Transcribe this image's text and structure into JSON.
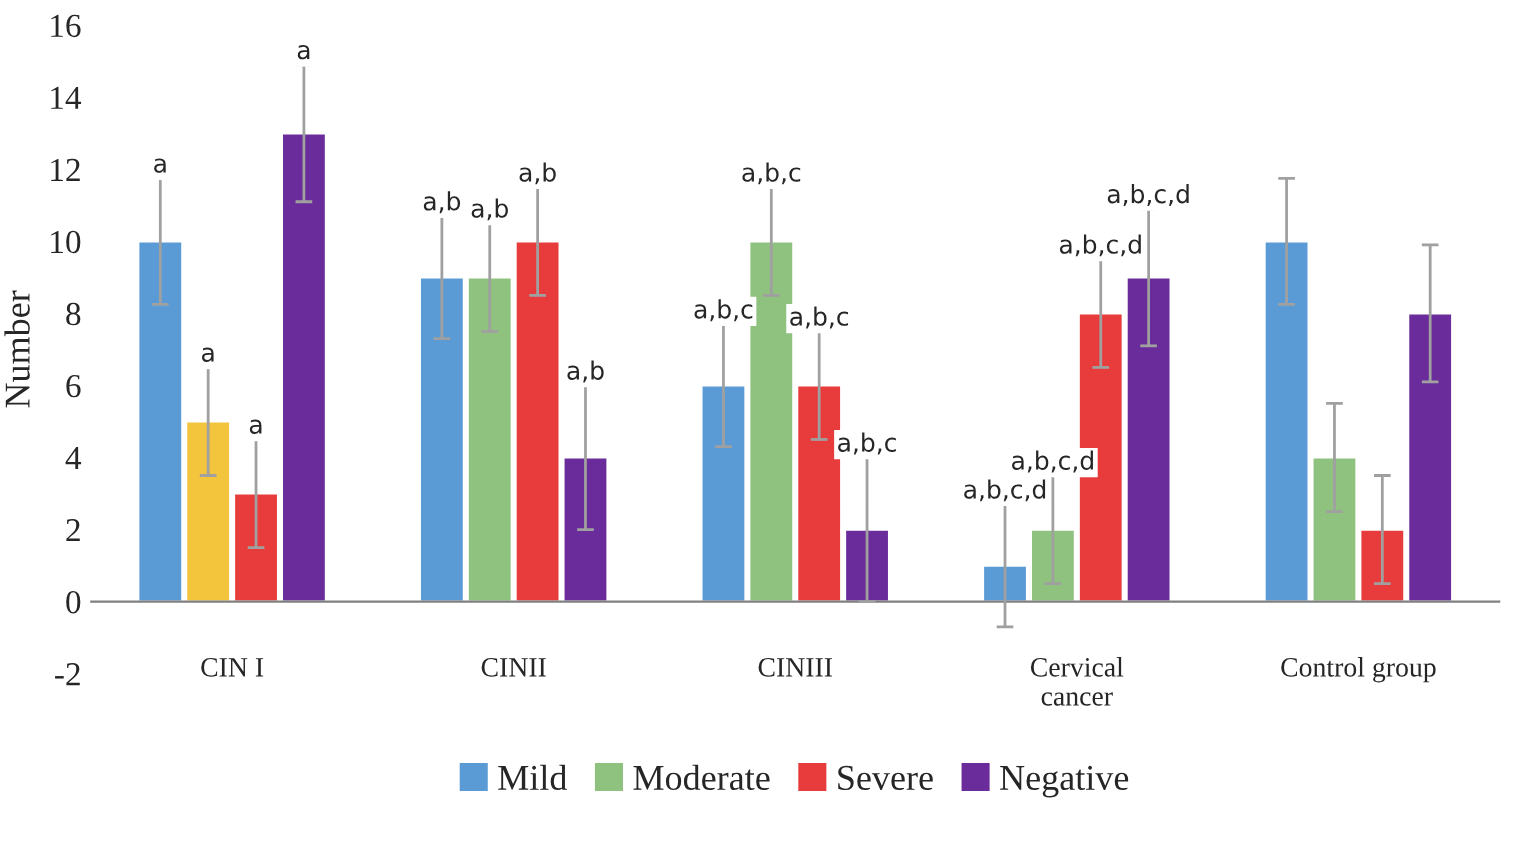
{
  "chart_data": {
    "type": "bar",
    "ylabel": "Number",
    "categories": [
      "CIN I",
      "CINII",
      "CINIII",
      "Cervical\ncancer",
      "Control group"
    ],
    "series": [
      {
        "name": "Mild",
        "color": "#5b9bd5",
        "values": [
          10,
          9,
          6,
          1,
          10
        ],
        "errors": [
          1.75,
          1.7,
          1.7,
          1.7,
          1.75
        ],
        "value_labels": [
          "a",
          "a,b",
          "a,b,c",
          "a,b,c,d",
          null
        ]
      },
      {
        "name": "Moderate",
        "color": "#8fc17f",
        "colors": [
          "#f2c53d",
          "#8fc17f",
          "#8fc17f",
          "#8fc17f",
          "#8fc17f"
        ],
        "values": [
          5,
          9,
          10,
          2,
          4
        ],
        "errors": [
          1.5,
          1.5,
          1.5,
          1.5,
          1.5
        ],
        "value_labels": [
          "a",
          "a,b",
          "a,b,c",
          "a,b,c,d",
          null
        ]
      },
      {
        "name": "Severe",
        "color": "#e83c3c",
        "values": [
          3,
          10,
          6,
          8,
          2
        ],
        "errors": [
          1.5,
          1.5,
          1.5,
          1.5,
          1.5
        ],
        "value_labels": [
          "a",
          "a,b",
          "a,b,c",
          "a,b,c,d",
          null
        ]
      },
      {
        "name": "Negative",
        "color": "#6a2c9a",
        "values": [
          13,
          4,
          2,
          9,
          8
        ],
        "errors": [
          1.9,
          2,
          2,
          1.9,
          1.9
        ],
        "value_labels": [
          "a",
          "a,b",
          "a,b,c",
          "a,b,c,d",
          null
        ]
      }
    ],
    "ylim": [
      -2,
      16
    ],
    "yticks": [
      -2,
      0,
      2,
      4,
      6,
      8,
      10,
      12,
      14,
      16
    ],
    "grid": false,
    "legend": "bottom"
  }
}
